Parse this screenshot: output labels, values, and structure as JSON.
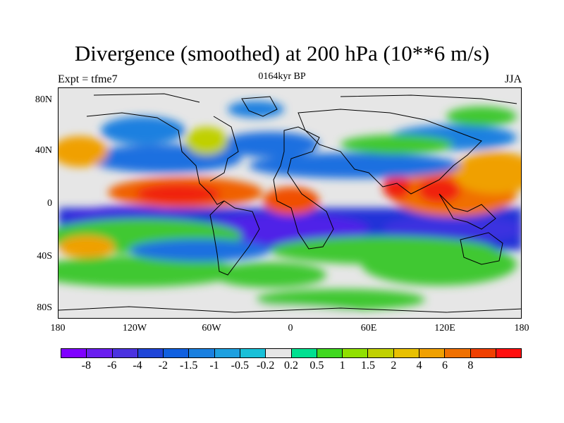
{
  "title": "Divergence (smoothed) at 200 hPa (10**6 m/s)",
  "subtitle": "0164kyr BP",
  "left_label": "Expt = tfme7",
  "right_label": "JJA",
  "y_ticks": [
    "80N",
    "40N",
    "0",
    "40S",
    "80S"
  ],
  "x_ticks": [
    "180",
    "120W",
    "60W",
    "0",
    "60E",
    "120E",
    "180"
  ],
  "colorbar": {
    "colors": [
      "#7f00ff",
      "#6a1ef0",
      "#4b32e0",
      "#1f45d8",
      "#1060e0",
      "#1a80e0",
      "#1ea0e0",
      "#19c0d8",
      "#e6e6e6",
      "#00e090",
      "#40d820",
      "#90e000",
      "#c0d000",
      "#e8c000",
      "#f0a000",
      "#f07000",
      "#f04000",
      "#ff1010"
    ],
    "labels": [
      "-8",
      "-6",
      "-4",
      "-2",
      "-1.5",
      "-1",
      "-0.5",
      "-0.2",
      "0.2",
      "0.5",
      "1",
      "1.5",
      "2",
      "4",
      "6",
      "8"
    ]
  }
}
